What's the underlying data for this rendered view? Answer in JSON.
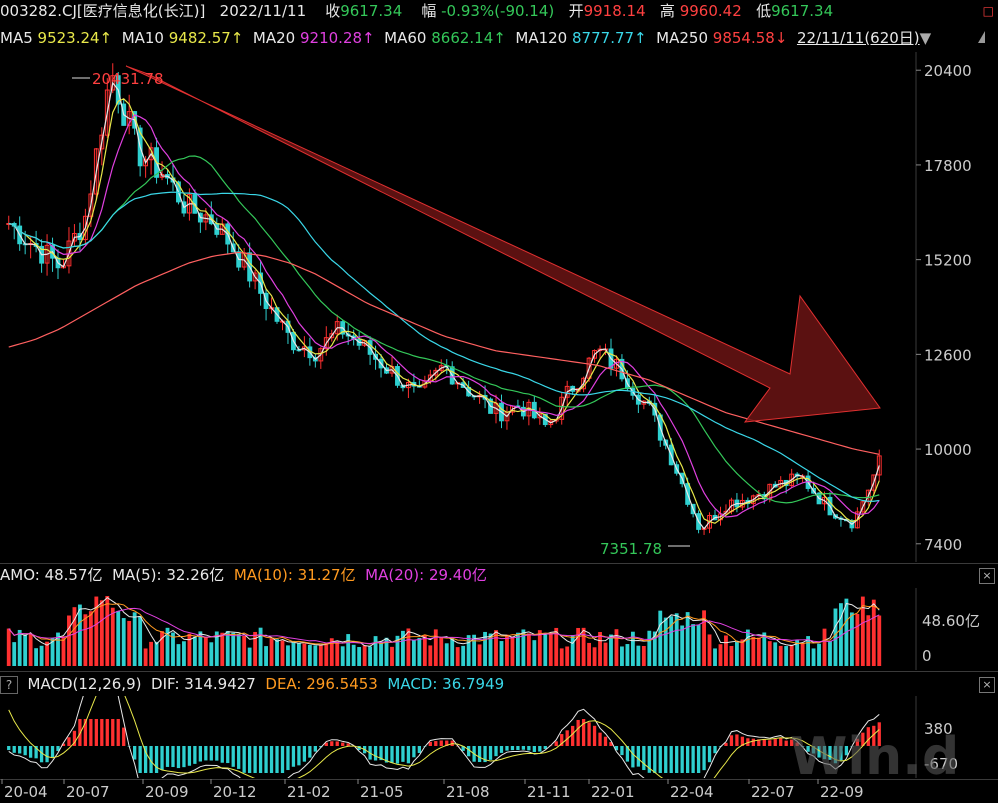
{
  "header": {
    "code": "003282.CJ[医疗信息化(长江)]",
    "date": "2022/11/11",
    "close_label": "收",
    "close": "9617.34",
    "chg_label": "幅",
    "chg": "-0.93%(-90.14)",
    "open_label": "开",
    "open": "9918.14",
    "high_label": "高",
    "high": "9960.42",
    "low_label": "低",
    "low": "9617.34",
    "close_btn": "□"
  },
  "ma": {
    "ma5_label": "MA5",
    "ma5": "9523.24↑",
    "ma10_label": "MA10",
    "ma10": "9482.57↑",
    "ma20_label": "MA20",
    "ma20": "9210.28↑",
    "ma60_label": "MA60",
    "ma60": "8662.14↑",
    "ma120_label": "MA120",
    "ma120": "8777.77↑",
    "ma250_label": "MA250",
    "ma250": "9854.58↓",
    "range": "22/11/11(620日)",
    "dropdown": "▼",
    "dropdown_icon": "down-triangle"
  },
  "amo": {
    "label": "AMO: 48.57亿",
    "ma5": "MA(5): 32.26亿",
    "ma10": "MA(10): 31.27亿",
    "ma20": "MA(20): 29.40亿",
    "close_btn": "×"
  },
  "macd": {
    "help": "?",
    "label": "MACD(12,26,9)",
    "dif": "DIF: 314.9427",
    "dea": "DEA: 296.5453",
    "macd": "MACD: 36.7949",
    "close_btn": "×"
  },
  "watermark": "Win.d",
  "colors": {
    "up": "#ff3030",
    "down": "#2fd0d0",
    "ma5": "#e8e8e8",
    "ma10": "#e8e84a",
    "ma20": "#e040e0",
    "ma60": "#34c759",
    "ma120": "#3ad7e8",
    "ma250": "#ff6060"
  },
  "chart_data": {
    "type": "line",
    "price_axis_ticks": [
      "20400",
      "17800",
      "15200",
      "12600",
      "10000",
      "7400"
    ],
    "price_axis_values": [
      20400,
      17800,
      15200,
      12600,
      10000,
      7400
    ],
    "ylim": [
      6900,
      20900
    ],
    "annotations": {
      "high": "20431.78",
      "low": "7351.78"
    },
    "x_ticks": [
      "20-04",
      "20-07",
      "20-09",
      "20-12",
      "21-02",
      "21-05",
      "21-08",
      "21-11",
      "22-01",
      "22-04",
      "22-07",
      "22-09"
    ],
    "series": [
      {
        "name": "close",
        "values": [
          16200,
          15600,
          15000,
          16400,
          20400,
          18200,
          17600,
          16600,
          16300,
          15300,
          14100,
          13000,
          12700,
          13300,
          12700,
          12100,
          11400,
          12300,
          11600,
          11000,
          11200,
          10600,
          11700,
          12700,
          12100,
          11100,
          9600,
          7800,
          8500,
          8700,
          9000,
          9200,
          8400,
          8000,
          9617
        ]
      },
      {
        "name": "MA250",
        "values": [
          12800,
          13000,
          13300,
          13700,
          14100,
          14500,
          14800,
          15100,
          15300,
          15400,
          15300,
          15100,
          14800,
          14400,
          14000,
          13700,
          13400,
          13100,
          12900,
          12700,
          12600,
          12500,
          12400,
          12300,
          12100,
          11900,
          11600,
          11300,
          11000,
          10800,
          10600,
          10400,
          10200,
          10000,
          9855
        ]
      }
    ],
    "amo_axis_ticks": [
      "48.60亿",
      "0"
    ],
    "macd_axis_ticks": [
      "380",
      "-670"
    ]
  }
}
